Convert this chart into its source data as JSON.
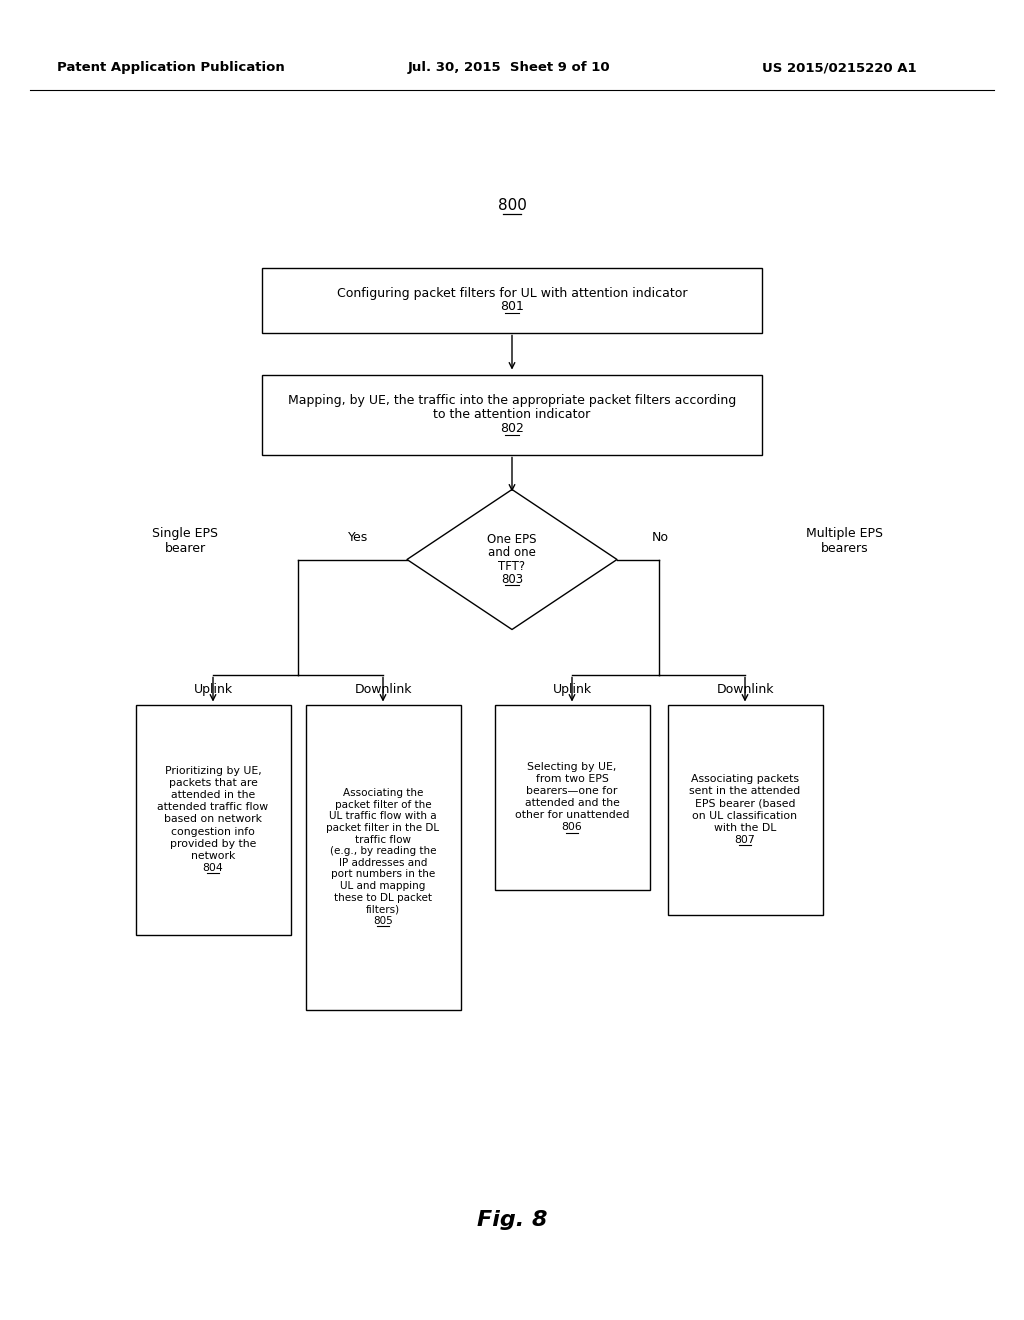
{
  "header_left": "Patent Application Publication",
  "header_mid": "Jul. 30, 2015  Sheet 9 of 10",
  "header_right": "US 2015/0215220 A1",
  "footer": "Fig. 8",
  "title": "800",
  "box801_lines": [
    "Configuring packet filters for UL with attention indicator"
  ],
  "box801_num": "801",
  "box802_lines": [
    "Mapping, by UE, the traffic into the appropriate packet filters according",
    "to the attention indicator"
  ],
  "box802_num": "802",
  "diamond803_lines": [
    "One EPS",
    "and one",
    "TFT?"
  ],
  "diamond803_num": "803",
  "box804_lines": [
    "Prioritizing by UE,",
    "packets that are",
    "attended in the",
    "attended traffic flow",
    "based on network",
    "congestion info",
    "provided by the",
    "network"
  ],
  "box804_num": "804",
  "box805_lines": [
    "Associating the",
    "packet filter of the",
    "UL traffic flow with a",
    "packet filter in the DL",
    "traffic flow",
    "(e.g., by reading the",
    "IP addresses and",
    "port numbers in the",
    "UL and mapping",
    "these to DL packet",
    "filters)"
  ],
  "box805_num": "805",
  "box806_lines": [
    "Selecting by UE,",
    "from two EPS",
    "bearers—one for",
    "attended and the",
    "other for unattended"
  ],
  "box806_num": "806",
  "box807_lines": [
    "Associating packets",
    "sent in the attended",
    "EPS bearer (based",
    "on UL classification",
    "with the DL"
  ],
  "box807_num": "807",
  "label_single_eps": "Single EPS\nbearer",
  "label_multiple_eps": "Multiple EPS\nbearers",
  "label_yes": "Yes",
  "label_no": "No",
  "label_ul_left": "Uplink",
  "label_dl_left": "Downlink",
  "label_ul_right": "Uplink",
  "label_dl_right": "Downlink",
  "bg_color": "#ffffff",
  "line_color": "#000000",
  "text_color": "#000000"
}
